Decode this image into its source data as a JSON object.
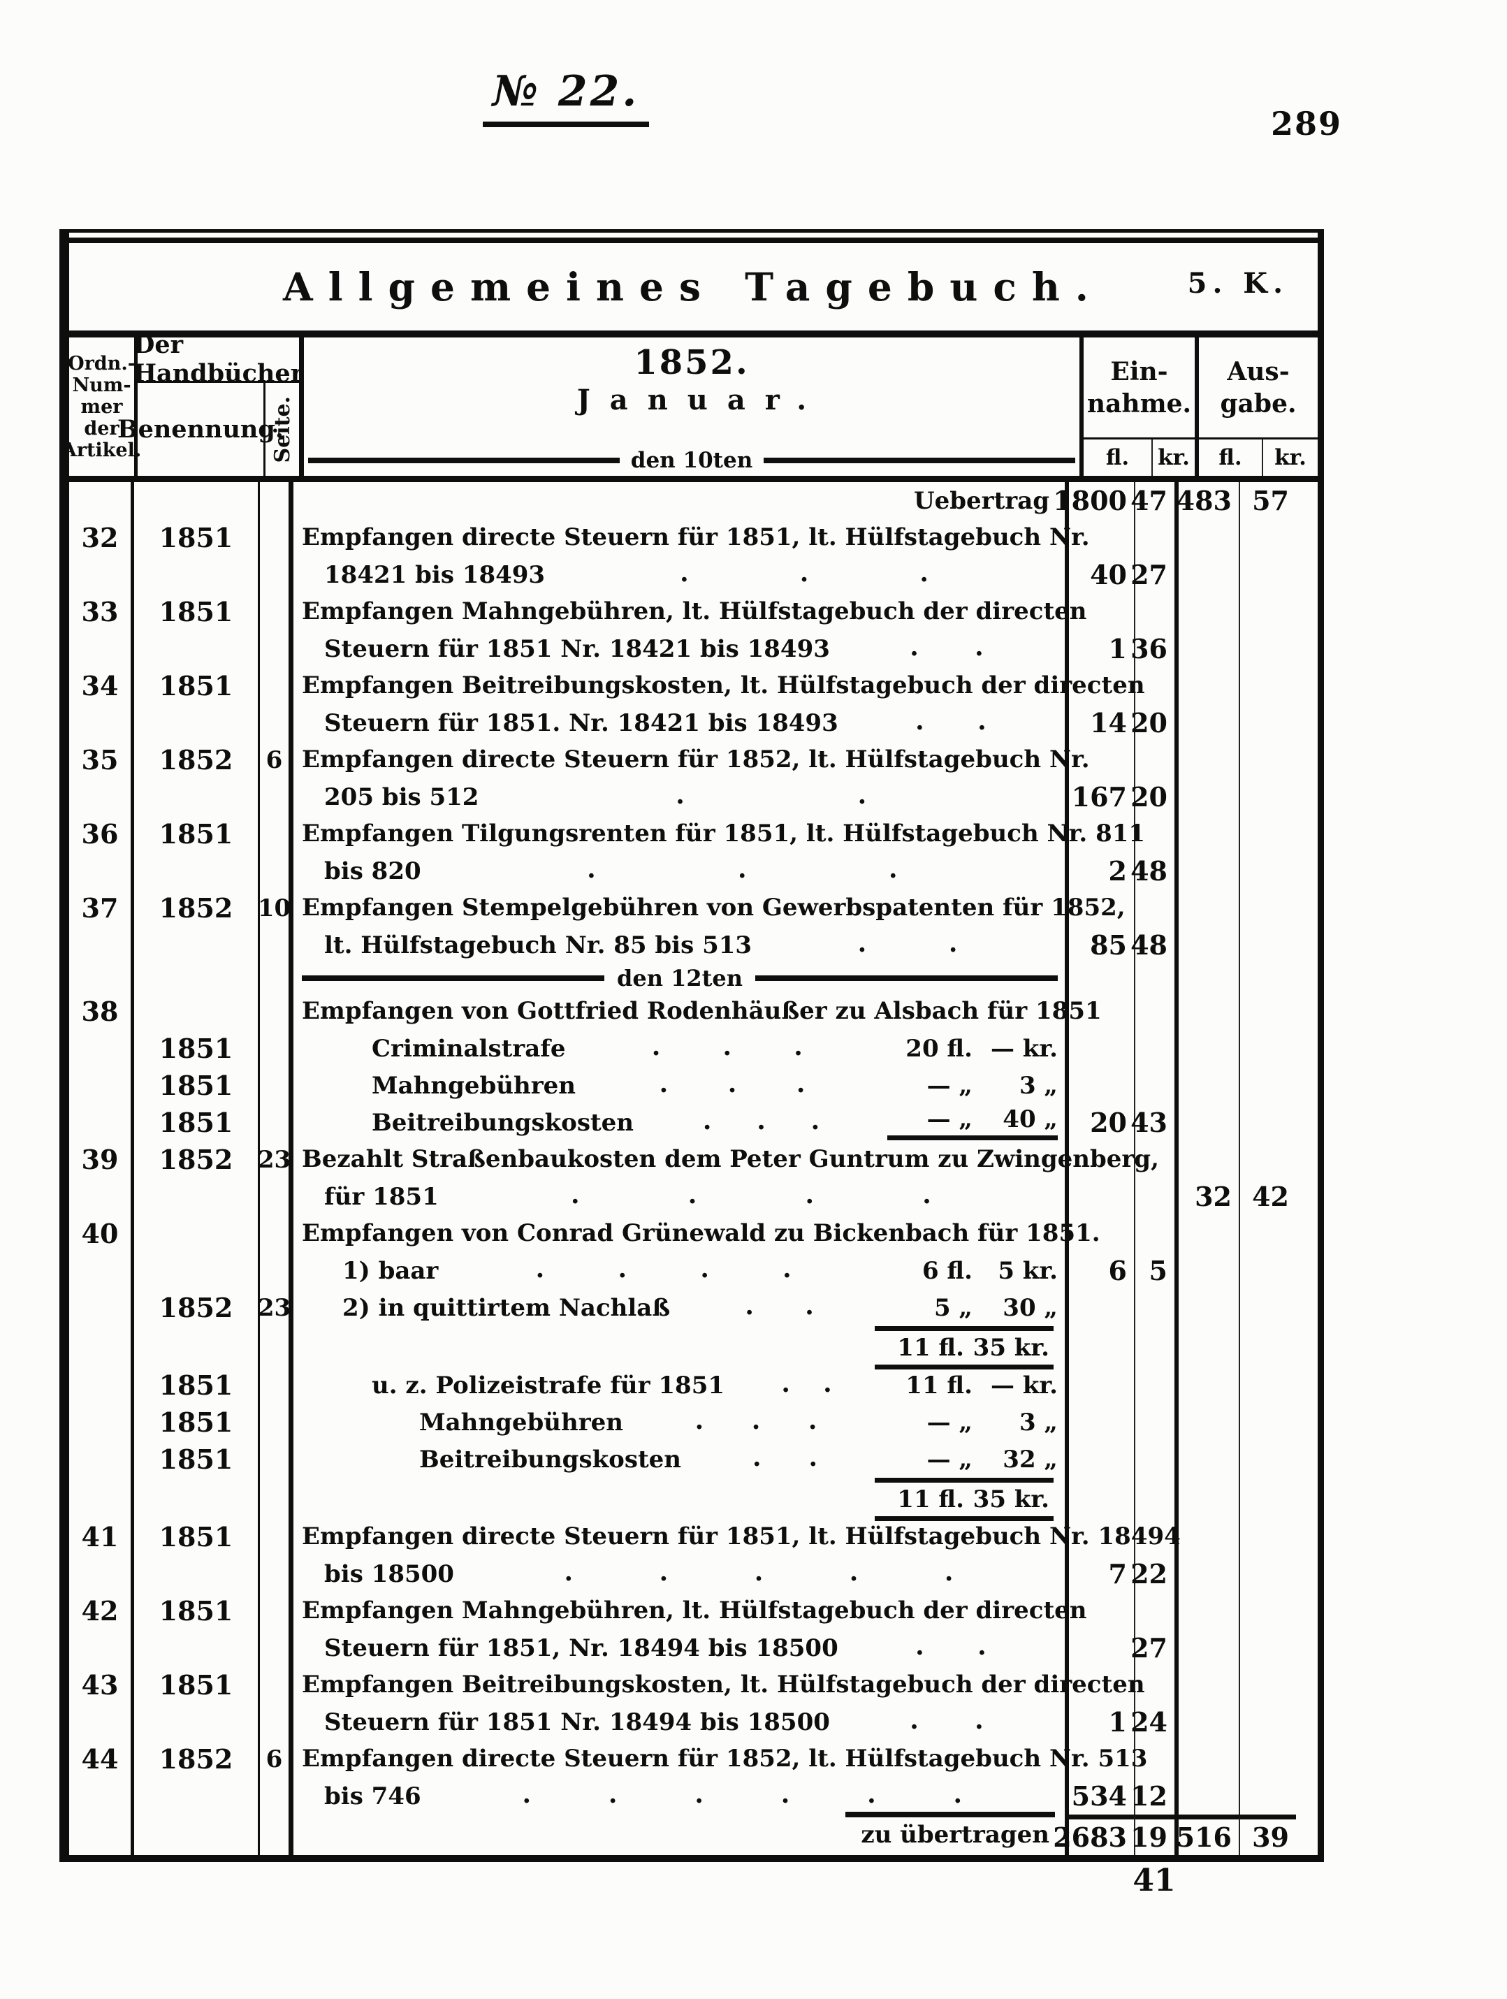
{
  "colors": {
    "ink": "#0e0e0e",
    "paper": "#fcfcfa"
  },
  "header": {
    "doc_number": "№ 22.",
    "page_number": "289"
  },
  "table": {
    "title": "Allgemeines Tagebuch.",
    "mark": "5. K.",
    "col_artikel": [
      "Ordn.-",
      "Num-",
      "mer",
      "der",
      "Artikel."
    ],
    "handbuch": "Der Handbücher",
    "benennung": "Benennung.",
    "seite": "Seite.",
    "period_year": "1852.",
    "period_month": "Januar.",
    "day_header": "den 10ten",
    "einnahme": [
      "Ein-",
      "nahme."
    ],
    "ausgabe": [
      "Aus-",
      "gabe."
    ],
    "fl": "fl.",
    "kr": "kr.",
    "rows": [
      {
        "t": "carry",
        "tx": "Uebertrag",
        "efl": "1800",
        "ekr": "47",
        "afl": "483",
        "akr": "57"
      },
      {
        "t": "e",
        "no": "32",
        "yr": "1851",
        "j": 1,
        "tx": "Empfangen directe Steuern für 1851, lt. Hülfstagebuch Nr."
      },
      {
        "t": "e",
        "ind": 1,
        "dots": 3,
        "tx": "18421 bis 18493",
        "efl": "40",
        "ekr": "27"
      },
      {
        "t": "e",
        "no": "33",
        "yr": "1851",
        "j": 1,
        "tx": "Empfangen Mahngebühren, lt. Hülfstagebuch der directen"
      },
      {
        "t": "e",
        "ind": 1,
        "dots": 2,
        "tx": "Steuern für 1851 Nr. 18421 bis 18493",
        "efl": "1",
        "ekr": "36"
      },
      {
        "t": "e",
        "no": "34",
        "yr": "1851",
        "j": 1,
        "tx": "Empfangen Beitreibungskosten, lt. Hülfstagebuch der directen"
      },
      {
        "t": "e",
        "ind": 1,
        "dots": 2,
        "tx": "Steuern für 1851. Nr. 18421 bis 18493",
        "efl": "14",
        "ekr": "20"
      },
      {
        "t": "e",
        "no": "35",
        "yr": "1852",
        "st": "6",
        "j": 1,
        "tx": "Empfangen directe Steuern für 1852, lt. Hülfstagebuch Nr."
      },
      {
        "t": "e",
        "ind": 1,
        "dots": 2,
        "tx": "205 bis 512",
        "efl": "167",
        "ekr": "20"
      },
      {
        "t": "e",
        "no": "36",
        "yr": "1851",
        "j": 1,
        "tx": "Empfangen Tilgungsrenten für 1851, lt. Hülfstagebuch Nr. 811"
      },
      {
        "t": "e",
        "ind": 1,
        "dots": 3,
        "tx": "bis 820",
        "efl": "2",
        "ekr": "48"
      },
      {
        "t": "e",
        "no": "37",
        "yr": "1852",
        "st": "10",
        "j": 1,
        "tx": "Empfangen Stempelgebühren von Gewerbspatenten für 1852,"
      },
      {
        "t": "e",
        "ind": 1,
        "dots": 2,
        "tx": "lt. Hülfstagebuch Nr. 85 bis 513",
        "efl": "85",
        "ekr": "48"
      },
      {
        "t": "s",
        "tx": "den 12ten"
      },
      {
        "t": "e",
        "no": "38",
        "j": 1,
        "tx": "Empfangen von Gottfried Rodenhäußer zu Alsbach für 1851"
      },
      {
        "t": "e",
        "yr": "1851",
        "ind": 3,
        "dots": 3,
        "tx": "Criminalstrafe",
        "amt": [
          "20 fl.",
          "— kr."
        ]
      },
      {
        "t": "e",
        "yr": "1851",
        "ind": 3,
        "dots": 3,
        "tx": "Mahngebühren",
        "amt": [
          "— „",
          "3 „"
        ]
      },
      {
        "t": "e",
        "yr": "1851",
        "ind": 3,
        "dots": 3,
        "tx": "Beitreibungskosten",
        "amt": [
          "— „",
          "40 „"
        ],
        "rba": 1,
        "efl": "20",
        "ekr": "43"
      },
      {
        "t": "e",
        "no": "39",
        "yr": "1852",
        "st": "23",
        "j": 1,
        "tx": "Bezahlt Straßenbaukosten dem Peter Guntrum zu Zwingenberg,"
      },
      {
        "t": "e",
        "ind": 1,
        "dots": 4,
        "tx": "für 1851",
        "afl": "32",
        "akr": "42"
      },
      {
        "t": "e",
        "no": "40",
        "j": 1,
        "tx": "Empfangen von Conrad Grünewald zu Bickenbach für 1851."
      },
      {
        "t": "e",
        "ind": 2,
        "dots": 4,
        "tx": "1) baar",
        "amt": [
          "6 fl.",
          "5 kr."
        ],
        "efl": "6",
        "ekr": "5"
      },
      {
        "t": "e",
        "yr": "1852",
        "st": "23",
        "ind": 2,
        "dots": 2,
        "tx": "2) in quittirtem Nachlaß",
        "amt": [
          "5 „",
          "30 „"
        ]
      },
      {
        "t": "sub",
        "amt": [
          "11 fl.",
          "35 kr."
        ]
      },
      {
        "t": "e",
        "yr": "1851",
        "ind": 3,
        "dots": 2,
        "tx": "u. z. Polizeistrafe für 1851",
        "amt": [
          "11 fl.",
          "— kr."
        ]
      },
      {
        "t": "e",
        "yr": "1851",
        "ind": 4,
        "dots": 3,
        "tx": "Mahngebühren",
        "amt": [
          "— „",
          "3 „"
        ]
      },
      {
        "t": "e",
        "yr": "1851",
        "ind": 4,
        "dots": 2,
        "tx": "Beitreibungskosten",
        "amt": [
          "— „",
          "32 „"
        ]
      },
      {
        "t": "sub",
        "amt": [
          "11 fl.",
          "35 kr."
        ]
      },
      {
        "t": "e",
        "no": "41",
        "yr": "1851",
        "j": 1,
        "tx": "Empfangen directe Steuern für 1851, lt. Hülfstagebuch Nr. 18494"
      },
      {
        "t": "e",
        "ind": 1,
        "dots": 5,
        "tx": "bis 18500",
        "efl": "7",
        "ekr": "22"
      },
      {
        "t": "e",
        "no": "42",
        "yr": "1851",
        "j": 1,
        "tx": "Empfangen Mahngebühren, lt. Hülfstagebuch der directen"
      },
      {
        "t": "e",
        "ind": 1,
        "dots": 2,
        "tx": "Steuern für 1851, Nr. 18494 bis 18500",
        "ekr": "27"
      },
      {
        "t": "e",
        "no": "43",
        "yr": "1851",
        "j": 1,
        "tx": "Empfangen Beitreibungskosten, lt. Hülfstagebuch der directen"
      },
      {
        "t": "e",
        "ind": 1,
        "dots": 2,
        "tx": "Steuern für 1851 Nr. 18494 bis 18500",
        "efl": "1",
        "ekr": "24"
      },
      {
        "t": "e",
        "no": "44",
        "yr": "1852",
        "st": "6",
        "j": 1,
        "tx": "Empfangen directe Steuern für 1852, lt. Hülfstagebuch Nr. 513"
      },
      {
        "t": "e",
        "ind": 1,
        "dots": 6,
        "tx": "bis 746",
        "efl": "534",
        "ekr": "12"
      },
      {
        "t": "tot",
        "tx": "zu übertragen",
        "efl": "2683",
        "ekr": "19",
        "afl": "516",
        "akr": "39"
      }
    ],
    "footer_mark": "41"
  }
}
